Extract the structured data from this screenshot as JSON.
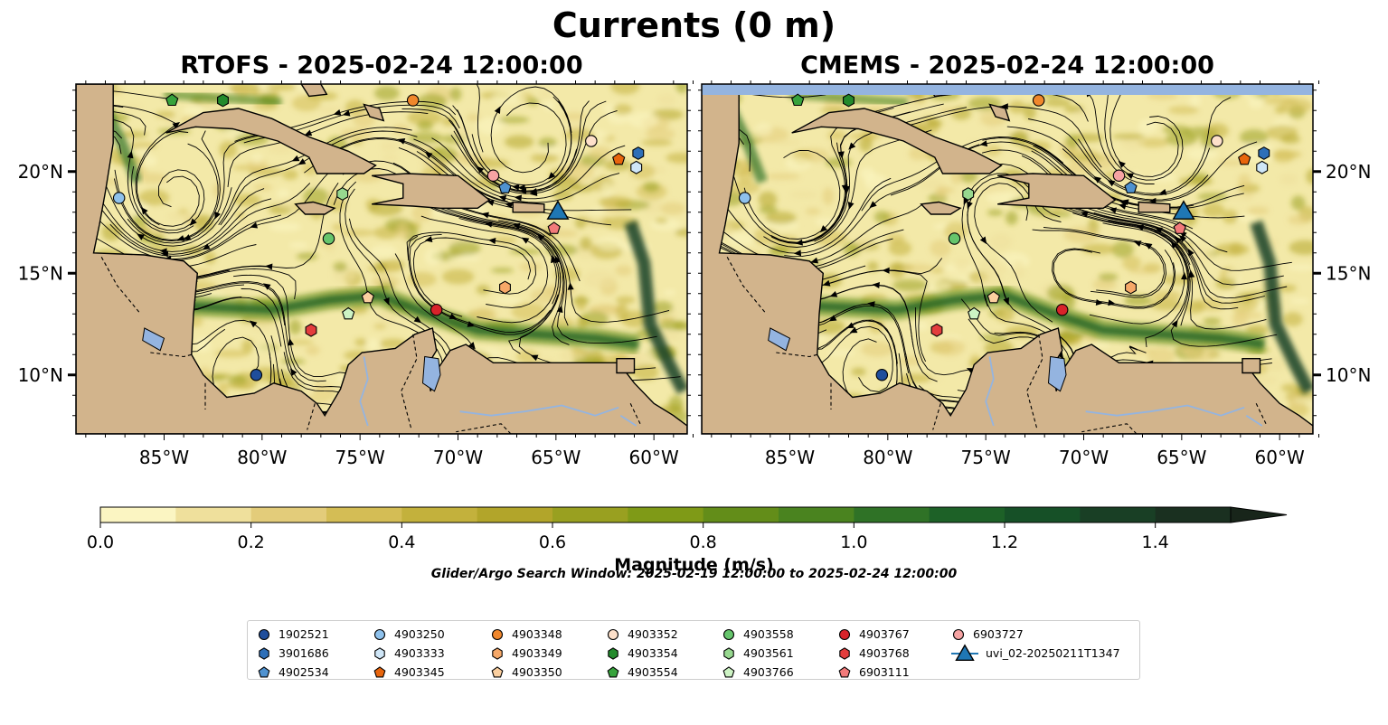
{
  "figure": {
    "title": "Currents (0 m)",
    "search_window_note": "Glider/Argo Search Window: 2025-02-19 12:00:00 to 2025-02-24 12:00:00"
  },
  "panels": [
    {
      "id": "rtofs",
      "title": "RTOFS - 2025-02-24 12:00:00",
      "lat_labels_side": "left"
    },
    {
      "id": "cmems",
      "title": "CMEMS - 2025-02-24 12:00:00",
      "lat_labels_side": "right"
    }
  ],
  "colorbar": {
    "label": "Magnitude (m/s)",
    "ticks": [
      "0.0",
      "0.2",
      "0.4",
      "0.6",
      "0.8",
      "1.0",
      "1.2",
      "1.4"
    ],
    "colors": [
      "#fbf5c2",
      "#efe09c",
      "#e3cc7a",
      "#d4bd55",
      "#c3b13c",
      "#b2a52a",
      "#99a020",
      "#7f9a17",
      "#638d19",
      "#4a831f",
      "#2f7226",
      "#1d6127",
      "#165027",
      "#193f25",
      "#1a3020",
      "#18251a"
    ],
    "extend": "max"
  },
  "colors": {
    "land": "#d2b48c",
    "lake": "#94b4e0",
    "ocean_base": "#f3e9a8"
  },
  "chart_data": {
    "type": "map",
    "variable": "Surface current magnitude (m/s) with streamlines",
    "x_axis": {
      "ticks": [
        "85°W",
        "80°W",
        "75°W",
        "70°W",
        "65°W",
        "60°W"
      ],
      "range": [
        -89.5,
        -58.3
      ]
    },
    "y_axis": {
      "ticks": [
        "10°N",
        "15°N",
        "20°N"
      ],
      "range": [
        7.1,
        24.3
      ]
    },
    "legend_location": "lower center",
    "legend_entries": [
      {
        "label": "1902521",
        "marker": "circle",
        "color": "#1f4e9c",
        "lon": -80.3,
        "lat": 10.0
      },
      {
        "label": "3901686",
        "marker": "hexagon",
        "color": "#2e6fb8",
        "lon": -60.8,
        "lat": 20.9
      },
      {
        "label": "4902534",
        "marker": "pentagon",
        "color": "#4f92d0",
        "lon": -67.6,
        "lat": 19.2
      },
      {
        "label": "4903250",
        "marker": "circle",
        "color": "#8ec1ec",
        "lon": -87.3,
        "lat": 18.7
      },
      {
        "label": "4903333",
        "marker": "hexagon",
        "color": "#cfe6f7",
        "lon": -60.9,
        "lat": 20.2
      },
      {
        "label": "4903345",
        "marker": "pentagon",
        "color": "#e8650d",
        "lon": -61.8,
        "lat": 20.6
      },
      {
        "label": "4903348",
        "marker": "circle",
        "color": "#f0872c",
        "lon": -72.3,
        "lat": 23.5
      },
      {
        "label": "4903349",
        "marker": "hexagon",
        "color": "#f6a868",
        "lon": -67.6,
        "lat": 14.3
      },
      {
        "label": "4903350",
        "marker": "pentagon",
        "color": "#fbcf9f",
        "lon": -74.6,
        "lat": 13.8
      },
      {
        "label": "4903352",
        "marker": "circle",
        "color": "#fde0ca",
        "lon": -63.2,
        "lat": 21.5
      },
      {
        "label": "4903354",
        "marker": "hexagon",
        "color": "#238a2c",
        "lon": -82.0,
        "lat": 23.5
      },
      {
        "label": "4903554",
        "marker": "pentagon",
        "color": "#37a33c",
        "lon": -84.6,
        "lat": 23.5
      },
      {
        "label": "4903558",
        "marker": "circle",
        "color": "#66c56c",
        "lon": -76.6,
        "lat": 16.7
      },
      {
        "label": "4903561",
        "marker": "hexagon",
        "color": "#97d88f",
        "lon": -75.9,
        "lat": 18.9
      },
      {
        "label": "4903766",
        "marker": "pentagon",
        "color": "#cdf3c4",
        "lon": -75.6,
        "lat": 13.0
      },
      {
        "label": "4903767",
        "marker": "circle",
        "color": "#d8232a",
        "lon": -71.1,
        "lat": 13.2
      },
      {
        "label": "4903768",
        "marker": "hexagon",
        "color": "#e33d3d",
        "lon": -77.5,
        "lat": 12.2
      },
      {
        "label": "6903111",
        "marker": "pentagon",
        "color": "#f27a7a",
        "lon": -65.1,
        "lat": 17.2
      },
      {
        "label": "6903727",
        "marker": "circle",
        "color": "#f6a3a3",
        "lon": -68.2,
        "lat": 19.8
      },
      {
        "label": "uvi_02-20250211T1347",
        "marker": "triangle",
        "color": "#1f77b4",
        "lon": -64.9,
        "lat": 18.1
      }
    ]
  }
}
